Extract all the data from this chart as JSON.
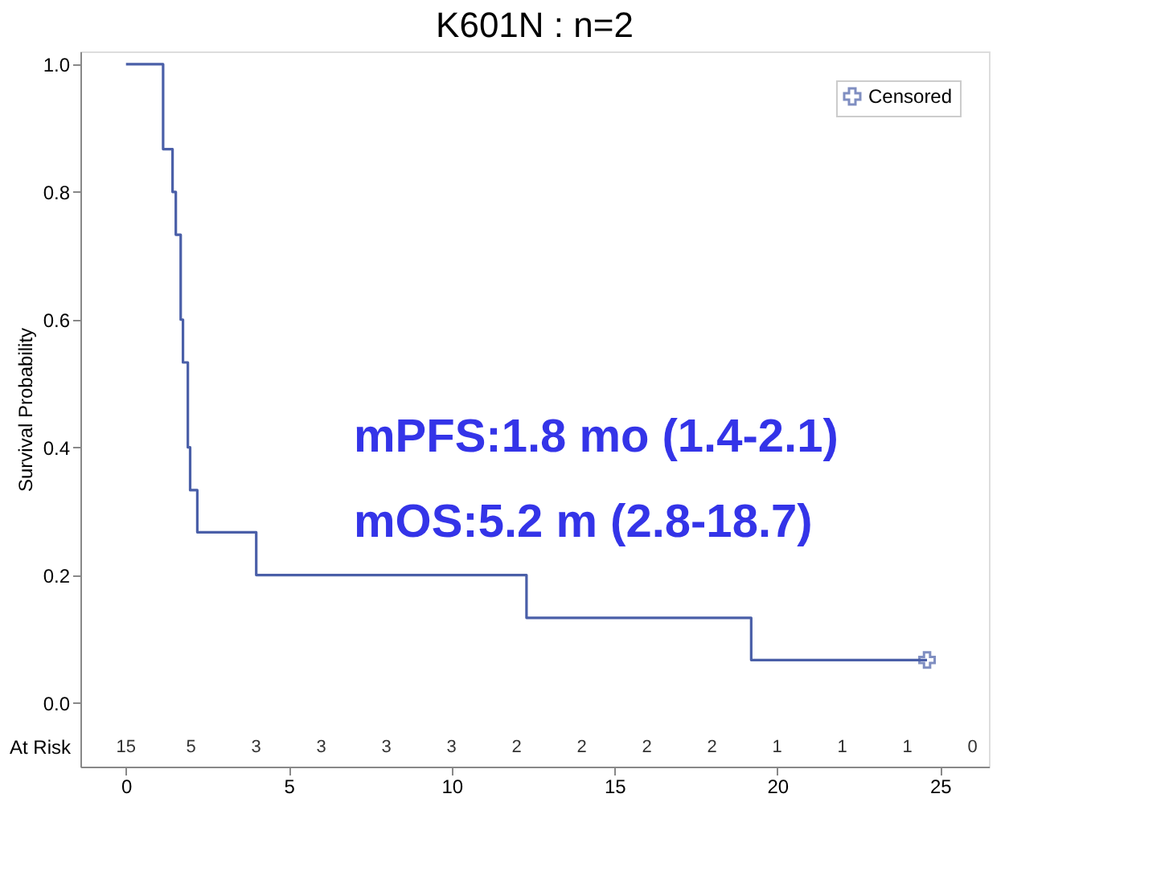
{
  "chart_data": {
    "type": "step",
    "title": "K601N : n=2",
    "ylabel": "Survival Probability",
    "x": [
      0,
      1.14,
      1.43,
      1.53,
      1.68,
      1.75,
      1.9,
      1.97,
      2.19,
      4.0,
      12.3,
      19.2,
      24.6
    ],
    "series": [
      {
        "color": "#4a5fa8",
        "values": [
          1.0,
          0.867,
          0.8,
          0.733,
          0.6,
          0.533,
          0.4,
          0.333,
          0.267,
          0.2,
          0.133,
          0.067,
          0.067
        ]
      },
      {
        "type": "scatter",
        "name": "Censored",
        "color": "#4a5fa8",
        "marker": "cross",
        "x": [
          24.6
        ],
        "values": [
          0.067
        ]
      }
    ],
    "xlim": [
      -1.4,
      26.5
    ],
    "ylim": [
      -0.1,
      1.02
    ],
    "xticks": [
      0,
      5,
      10,
      15,
      20,
      25
    ],
    "yticks": [
      {
        "value": 0,
        "label": "0.0"
      },
      {
        "value": 0.2,
        "label": "0.2"
      },
      {
        "value": 0.4,
        "label": "0.4"
      },
      {
        "value": 0.6,
        "label": "0.6"
      },
      {
        "value": 0.8,
        "label": "0.8"
      },
      {
        "value": 1,
        "label": "1.0"
      }
    ],
    "grid": false,
    "legend": "top right",
    "annotations": [
      "mPFS:1.8 mo (1.4-2.1)",
      "mOS:5.2 m (2.8-18.7)",
      "At Risk",
      "15",
      "5",
      "3",
      "3",
      "3",
      "3",
      "2",
      "2",
      "2",
      "2",
      "1",
      "1",
      "1",
      "0"
    ]
  }
}
